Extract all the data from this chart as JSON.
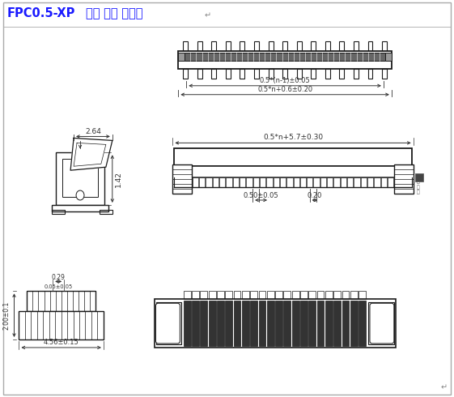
{
  "title1": "FPC0.5-XP",
  "title2": "立贴 带锁 正脚位",
  "bg_color": "#ffffff",
  "line_color": "#1a1a1a",
  "dim_color": "#333333",
  "title_color": "#1a1aff",
  "figsize": [
    5.61,
    4.9
  ],
  "dpi": 100,
  "dim_labels": {
    "top1": "0.5*(n-1)±0.05",
    "top2": "0.5*n+0.6±0.20",
    "front_width": "0.5*n+5.7±0.30",
    "front_pin1": "0.50±0.05",
    "front_pin2": "0.20",
    "side_h": "2.64",
    "side_v": "1.42",
    "bot_v": "2.00±0.1",
    "bot_h": "4.56±0.15",
    "bot_p1": "0.29",
    "bot_p2": "0.05±0.05"
  }
}
